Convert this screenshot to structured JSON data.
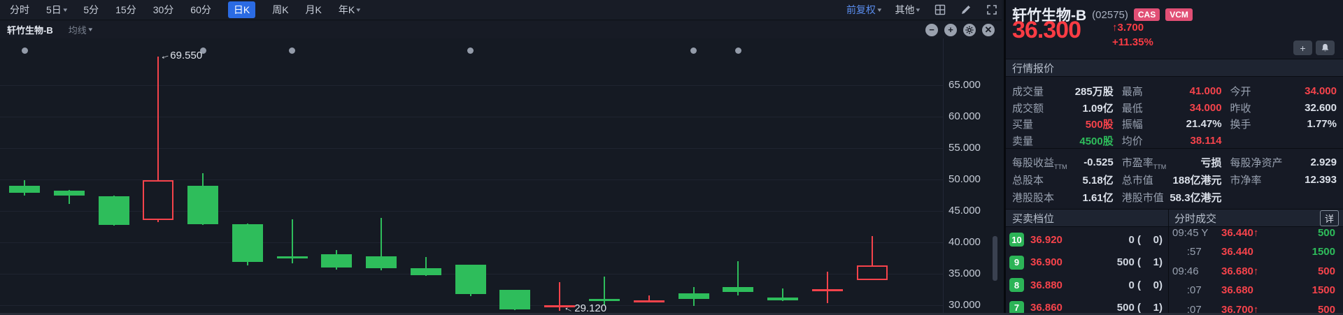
{
  "colors": {
    "red": "#f5434b",
    "green": "#2ebd5b",
    "blue": "#2b6be3",
    "badge_pink": "#e14f75",
    "chart_bg": "#151a23"
  },
  "toolbar": {
    "periods": [
      {
        "label": "分时",
        "caret": false,
        "active": false
      },
      {
        "label": "5日",
        "caret": true,
        "active": false
      },
      {
        "label": "5分",
        "caret": false,
        "active": false
      },
      {
        "label": "15分",
        "caret": false,
        "active": false
      },
      {
        "label": "30分",
        "caret": false,
        "active": false
      },
      {
        "label": "60分",
        "caret": false,
        "active": false
      },
      {
        "label": "日K",
        "caret": false,
        "active": true
      },
      {
        "label": "周K",
        "caret": false,
        "active": false
      },
      {
        "label": "月K",
        "caret": false,
        "active": false
      },
      {
        "label": "年K",
        "caret": true,
        "active": false
      }
    ],
    "adjust_label": "前复权",
    "other_label": "其他"
  },
  "chart_header": {
    "symbol": "轩竹生物-B",
    "ma_label": "均线"
  },
  "chart_data": {
    "type": "candlestick",
    "title": "轩竹生物-B 日K (前复权)",
    "ylim": [
      28.5,
      72
    ],
    "y_ticks": [
      65,
      60,
      55,
      50,
      45,
      40,
      35,
      30
    ],
    "y_tick_labels": [
      "65.000",
      "60.000",
      "55.000",
      "50.000",
      "45.000",
      "40.000",
      "35.000",
      "30.000"
    ],
    "high_annotation": "69.550",
    "low_annotation": "29.120",
    "marker_indices": [
      0,
      4,
      6,
      10,
      15,
      16
    ],
    "ohlc": [
      {
        "o": 49.0,
        "h": 49.9,
        "l": 47.4,
        "c": 47.9
      },
      {
        "o": 48.2,
        "h": 48.3,
        "l": 46.1,
        "c": 47.4
      },
      {
        "o": 47.3,
        "h": 47.4,
        "l": 42.7,
        "c": 42.8
      },
      {
        "o": 43.6,
        "h": 69.55,
        "l": 43.2,
        "c": 49.85
      },
      {
        "o": 49.0,
        "h": 51.0,
        "l": 42.8,
        "c": 42.9
      },
      {
        "o": 42.9,
        "h": 43.0,
        "l": 36.3,
        "c": 36.9
      },
      {
        "o": 37.8,
        "h": 43.7,
        "l": 36.7,
        "c": 37.4
      },
      {
        "o": 38.1,
        "h": 38.8,
        "l": 35.7,
        "c": 36.0
      },
      {
        "o": 37.8,
        "h": 43.9,
        "l": 35.6,
        "c": 35.9
      },
      {
        "o": 35.9,
        "h": 37.7,
        "l": 34.7,
        "c": 34.8
      },
      {
        "o": 36.4,
        "h": 36.5,
        "l": 31.5,
        "c": 31.8
      },
      {
        "o": 32.4,
        "h": 32.5,
        "l": 29.2,
        "c": 29.3
      },
      {
        "o": 29.9,
        "h": 33.7,
        "l": 29.12,
        "c": 30.0
      },
      {
        "o": 31.0,
        "h": 34.6,
        "l": 30.0,
        "c": 30.9
      },
      {
        "o": 30.6,
        "h": 31.6,
        "l": 30.4,
        "c": 30.8
      },
      {
        "o": 31.9,
        "h": 32.9,
        "l": 29.9,
        "c": 31.0
      },
      {
        "o": 32.9,
        "h": 37.0,
        "l": 31.6,
        "c": 32.1
      },
      {
        "o": 31.2,
        "h": 32.7,
        "l": 30.7,
        "c": 30.8
      },
      {
        "o": 32.5,
        "h": 35.3,
        "l": 30.3,
        "c": 32.6
      },
      {
        "o": 34.0,
        "h": 41.0,
        "l": 34.0,
        "c": 36.3
      }
    ]
  },
  "panel": {
    "name": "轩竹生物-B",
    "code": "(02575)",
    "badges": [
      "CAS",
      "VCM"
    ],
    "price": "36.300",
    "change_arrow": "↑",
    "change": "3.700",
    "change_pct": "+11.35%",
    "add_label": "+",
    "quote_title": "行情报价",
    "quote_rows": [
      [
        {
          "l": "成交量",
          "v": "285万股",
          "c": ""
        },
        {
          "l": "最高",
          "v": "41.000",
          "c": "red"
        },
        {
          "l": "今开",
          "v": "34.000",
          "c": "red"
        }
      ],
      [
        {
          "l": "成交额",
          "v": "1.09亿",
          "c": ""
        },
        {
          "l": "最低",
          "v": "34.000",
          "c": "red"
        },
        {
          "l": "昨收",
          "v": "32.600",
          "c": ""
        }
      ],
      [
        {
          "l": "买量",
          "v": "500股",
          "c": "red"
        },
        {
          "l": "振幅",
          "v": "21.47%",
          "c": ""
        },
        {
          "l": "换手",
          "v": "1.77%",
          "c": ""
        }
      ],
      [
        {
          "l": "卖量",
          "v": "4500股",
          "c": "green"
        },
        {
          "l": "均价",
          "v": "38.114",
          "c": "red"
        },
        {
          "l": "",
          "v": "",
          "c": ""
        }
      ]
    ],
    "fin_rows": [
      [
        {
          "l": "每股收益",
          "sub": "TTM",
          "v": "-0.525",
          "c": ""
        },
        {
          "l": "市盈率",
          "sub": "TTM",
          "v": "亏损",
          "c": ""
        },
        {
          "l": "每股净资产",
          "v": "2.929",
          "c": ""
        }
      ],
      [
        {
          "l": "总股本",
          "v": "5.18亿",
          "c": ""
        },
        {
          "l": "总市值",
          "v": "188亿港元",
          "c": ""
        },
        {
          "l": "市净率",
          "v": "12.393",
          "c": ""
        }
      ],
      [
        {
          "l": "港股股本",
          "v": "1.61亿",
          "c": ""
        },
        {
          "l": "港股市值",
          "v": "58.3亿港元",
          "c": ""
        },
        {
          "l": "",
          "v": "",
          "c": ""
        }
      ]
    ],
    "orderbook_title": "买卖档位",
    "timesales_title": "分时成交",
    "detail_label": "详",
    "orderbook": [
      {
        "level": "10",
        "price": "36.920",
        "qty": "0",
        "orders": "0"
      },
      {
        "level": "9",
        "price": "36.900",
        "qty": "500",
        "orders": "1"
      },
      {
        "level": "8",
        "price": "36.880",
        "qty": "0",
        "orders": "0"
      },
      {
        "level": "7",
        "price": "36.860",
        "qty": "500",
        "orders": "1"
      }
    ],
    "ticks": [
      {
        "time": "09:45 Y",
        "price": "36.440",
        "arrow": "↑",
        "vol": "500",
        "vc": "green"
      },
      {
        "time": "     :57",
        "price": "36.440",
        "arrow": "",
        "vol": "1500",
        "vc": "green"
      },
      {
        "time": "09:46",
        "price": "36.680",
        "arrow": "↑",
        "vol": "500",
        "vc": "red"
      },
      {
        "time": "     :07",
        "price": "36.680",
        "arrow": "",
        "vol": "1500",
        "vc": "red"
      },
      {
        "time": "     :07",
        "price": "36.700",
        "arrow": "↑",
        "vol": "500",
        "vc": "red"
      }
    ]
  }
}
